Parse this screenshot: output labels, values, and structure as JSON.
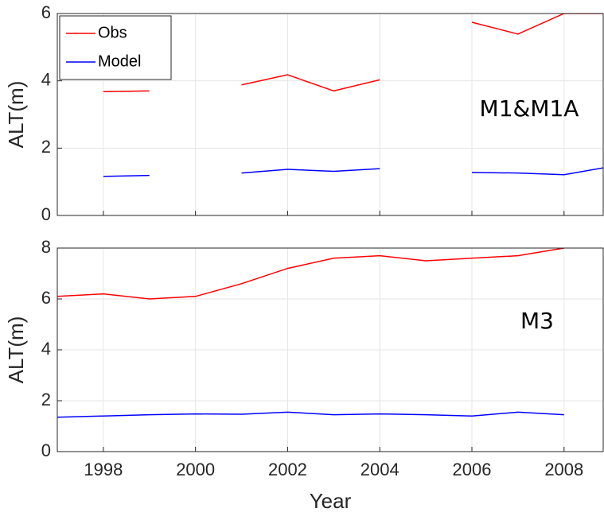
{
  "chart_data": [
    {
      "type": "line",
      "annotation": "M1&M1A",
      "ylabel": "ALT(m)",
      "x": [
        1997,
        1998,
        1999,
        2000,
        2001,
        2002,
        2003,
        2004,
        2005,
        2006,
        2007,
        2008,
        2009
      ],
      "series": [
        {
          "name": "Obs",
          "color": "#ff0000",
          "values": [
            null,
            3.68,
            3.7,
            null,
            3.88,
            4.18,
            3.7,
            4.03,
            null,
            5.74,
            5.39,
            6.0,
            6.0
          ]
        },
        {
          "name": "Model",
          "color": "#0000ff",
          "values": [
            null,
            1.16,
            1.19,
            null,
            1.26,
            1.37,
            1.31,
            1.39,
            null,
            1.28,
            1.26,
            1.21,
            1.45
          ]
        }
      ],
      "xlim": [
        1997,
        2008.85
      ],
      "xticks": [
        1998,
        2000,
        2002,
        2004,
        2006,
        2008
      ],
      "xtick_labels": false,
      "ylim": [
        0,
        6
      ],
      "yticks": [
        0,
        2,
        4,
        6
      ],
      "grid": true,
      "legend": "upper left"
    },
    {
      "type": "line",
      "annotation": "M3",
      "ylabel": "ALT(m)",
      "xlabel": "Year",
      "x": [
        1997,
        1998,
        1999,
        2000,
        2001,
        2002,
        2003,
        2004,
        2005,
        2006,
        2007,
        2008
      ],
      "series": [
        {
          "name": "Obs",
          "color": "#ff0000",
          "values": [
            6.1,
            6.2,
            6.0,
            6.1,
            6.6,
            7.2,
            7.6,
            7.7,
            7.5,
            7.6,
            7.7,
            8.0
          ]
        },
        {
          "name": "Model",
          "color": "#0000ff",
          "values": [
            1.35,
            1.4,
            1.45,
            1.48,
            1.47,
            1.55,
            1.45,
            1.48,
            1.45,
            1.4,
            1.55,
            1.45
          ]
        }
      ],
      "xlim": [
        1997,
        2008.85
      ],
      "xticks": [
        1998,
        2000,
        2002,
        2004,
        2006,
        2008
      ],
      "xtick_labels": true,
      "ylim": [
        0,
        8
      ],
      "yticks": [
        0,
        2,
        4,
        6,
        8
      ],
      "grid": true
    }
  ]
}
